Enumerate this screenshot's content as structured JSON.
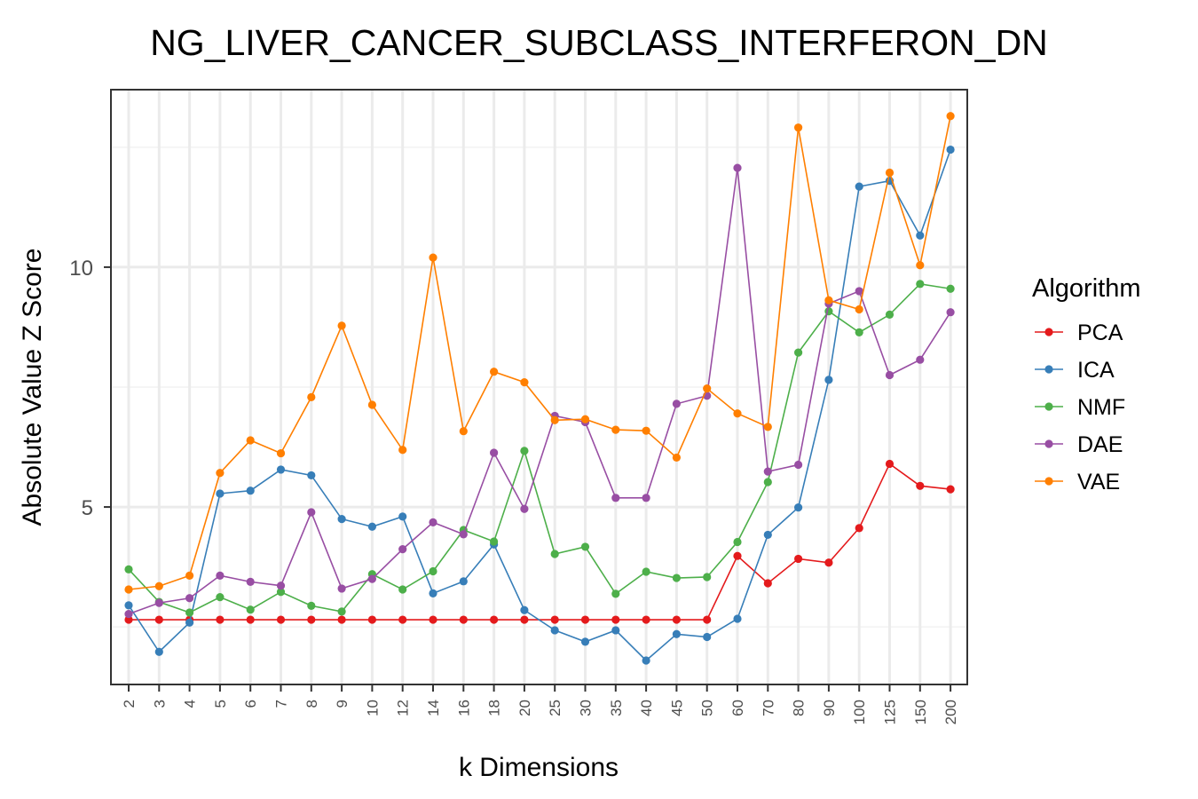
{
  "chart_data": {
    "type": "line",
    "title": "NG_LIVER_CANCER_SUBCLASS_INTERFERON_DN",
    "xlabel": "k Dimensions",
    "ylabel": "Absolute Value Z Score",
    "categories": [
      "2",
      "3",
      "4",
      "5",
      "6",
      "7",
      "8",
      "9",
      "10",
      "12",
      "14",
      "16",
      "18",
      "20",
      "25",
      "30",
      "35",
      "40",
      "45",
      "50",
      "60",
      "70",
      "80",
      "90",
      "100",
      "125",
      "150",
      "200"
    ],
    "ylim": [
      1.3,
      13.7
    ],
    "yticks": [
      5,
      10
    ],
    "grid": true,
    "legend": {
      "title": "Algorithm",
      "position": "right"
    },
    "series": [
      {
        "name": "PCA",
        "color": "#e41a1c",
        "values": [
          2.65,
          2.65,
          2.65,
          2.65,
          2.65,
          2.65,
          2.65,
          2.65,
          2.65,
          2.65,
          2.65,
          2.65,
          2.65,
          2.65,
          2.65,
          2.65,
          2.65,
          2.65,
          2.65,
          2.65,
          3.98,
          3.41,
          3.92,
          3.84,
          4.56,
          5.9,
          5.44,
          5.37
        ]
      },
      {
        "name": "ICA",
        "color": "#377eb8",
        "values": [
          2.95,
          1.98,
          2.59,
          5.28,
          5.34,
          5.78,
          5.66,
          4.75,
          4.59,
          4.8,
          3.2,
          3.45,
          4.22,
          2.85,
          2.43,
          2.19,
          2.43,
          1.8,
          2.35,
          2.29,
          2.67,
          4.42,
          4.99,
          7.65,
          11.68,
          11.8,
          10.66,
          12.45
        ]
      },
      {
        "name": "NMF",
        "color": "#4daf4a",
        "values": [
          3.7,
          3.02,
          2.8,
          3.12,
          2.86,
          3.23,
          2.94,
          2.82,
          3.6,
          3.28,
          3.66,
          4.52,
          4.28,
          6.17,
          4.02,
          4.17,
          3.19,
          3.65,
          3.52,
          3.54,
          4.27,
          5.52,
          8.22,
          9.08,
          8.64,
          9.01,
          9.65,
          9.55
        ]
      },
      {
        "name": "DAE",
        "color": "#984ea3",
        "values": [
          2.77,
          3.0,
          3.1,
          3.57,
          3.44,
          3.36,
          4.89,
          3.3,
          3.5,
          4.12,
          4.68,
          4.43,
          6.13,
          4.96,
          6.9,
          6.77,
          5.19,
          5.19,
          7.15,
          7.32,
          12.07,
          5.74,
          5.88,
          9.24,
          9.5,
          7.75,
          8.07,
          9.06
        ]
      },
      {
        "name": "VAE",
        "color": "#ff7f00",
        "values": [
          3.28,
          3.35,
          3.57,
          5.71,
          6.39,
          6.12,
          7.29,
          8.78,
          7.13,
          6.19,
          10.2,
          6.58,
          7.82,
          7.6,
          6.81,
          6.83,
          6.61,
          6.59,
          6.03,
          7.47,
          6.95,
          6.67,
          12.91,
          9.31,
          9.12,
          11.97,
          10.04,
          13.15
        ]
      }
    ]
  }
}
